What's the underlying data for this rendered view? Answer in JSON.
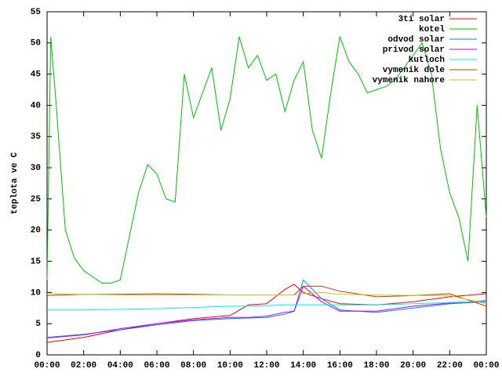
{
  "chart_data": {
    "type": "line",
    "y_label": "teplota ve C",
    "xlim": [
      0,
      24
    ],
    "xticks": [
      {
        "value": 0,
        "label": "00:00"
      },
      {
        "value": 2,
        "label": "02:00"
      },
      {
        "value": 4,
        "label": "04:00"
      },
      {
        "value": 6,
        "label": "06:00"
      },
      {
        "value": 8,
        "label": "08:00"
      },
      {
        "value": 10,
        "label": "10:00"
      },
      {
        "value": 12,
        "label": "12:00"
      },
      {
        "value": 14,
        "label": "14:00"
      },
      {
        "value": 16,
        "label": "16:00"
      },
      {
        "value": 18,
        "label": "18:00"
      },
      {
        "value": 20,
        "label": "20:00"
      },
      {
        "value": 22,
        "label": "22:00"
      },
      {
        "value": 24,
        "label": "00:00"
      }
    ],
    "ylim": [
      0,
      55
    ],
    "yticks": [
      0,
      5,
      10,
      15,
      20,
      25,
      30,
      35,
      40,
      45,
      50,
      55
    ],
    "legend": "top-right",
    "series": [
      {
        "name": "3ti solar",
        "color": "#ff0000",
        "x": [
          0,
          2,
          4,
          6,
          8,
          10,
          11,
          12,
          13,
          13.5,
          14,
          15,
          16,
          18,
          20,
          22,
          24
        ],
        "values": [
          2,
          2.8,
          4,
          5,
          5.8,
          6.3,
          8,
          8.2,
          10.5,
          11.3,
          10,
          9,
          8.2,
          8,
          8.5,
          9.3,
          9.8
        ]
      },
      {
        "name": "kotel",
        "color": "#00c000",
        "x": [
          0,
          0.2,
          0.5,
          1,
          1.5,
          2,
          2.5,
          3,
          3.5,
          4,
          4.5,
          5,
          5.5,
          6,
          6.5,
          7,
          7.5,
          8,
          8.5,
          9,
          9.5,
          10,
          10.5,
          11,
          11.5,
          12,
          12.5,
          13,
          13.5,
          14,
          14.5,
          15,
          15.5,
          16,
          16.5,
          17,
          17.5,
          18,
          18.5,
          19,
          19.5,
          20,
          20.5,
          21,
          21.5,
          22,
          22.5,
          23,
          23.5,
          24
        ],
        "values": [
          12,
          51,
          40,
          20,
          15.5,
          13.5,
          12.5,
          11.5,
          11.5,
          12,
          19,
          26,
          30.5,
          29,
          25,
          24.5,
          45,
          38,
          42,
          46,
          36,
          41,
          51,
          46,
          48,
          44,
          45,
          39,
          44,
          47,
          36,
          31.5,
          42,
          51,
          47,
          45,
          42,
          42.5,
          43,
          44,
          46,
          48,
          50,
          45,
          33,
          26,
          22,
          15,
          40,
          22
        ]
      },
      {
        "name": "odvod solar",
        "color": "#0080ff",
        "x": [
          0,
          2,
          4,
          6,
          8,
          10,
          11,
          12,
          13,
          13.5,
          14,
          15,
          16,
          18,
          20,
          22,
          24
        ],
        "values": [
          2.8,
          3.3,
          4,
          4.8,
          5.5,
          5.8,
          5.9,
          6,
          6.5,
          7,
          12,
          9,
          7.2,
          6.8,
          7.5,
          8.2,
          8.5
        ]
      },
      {
        "name": "privod solar",
        "color": "#c000ff",
        "x": [
          0,
          2,
          4,
          6,
          8,
          10,
          11,
          12,
          13,
          13.5,
          14,
          15,
          16,
          18,
          20,
          22,
          24
        ],
        "values": [
          2.7,
          3.2,
          4.2,
          5,
          5.6,
          6,
          6,
          6.2,
          6.8,
          7,
          11,
          8.5,
          7,
          7,
          7.8,
          8.3,
          8.7
        ]
      },
      {
        "name": "kutloch",
        "color": "#00eeee",
        "x": [
          0,
          2,
          4,
          6,
          8,
          10,
          11,
          12,
          13,
          13.5,
          14,
          15,
          16,
          18,
          20,
          22,
          24
        ],
        "values": [
          7.2,
          7.2,
          7.3,
          7.4,
          7.6,
          7.8,
          7.8,
          7.9,
          8,
          8,
          8,
          8,
          8,
          8,
          8.2,
          8.4,
          8.6
        ]
      },
      {
        "name": "vymenik dole",
        "color": "#c04000",
        "x": [
          0,
          2,
          4,
          6,
          8,
          10,
          11,
          12,
          13,
          13.5,
          14,
          15,
          16,
          18,
          20,
          22,
          24
        ],
        "values": [
          9.5,
          9.7,
          9.7,
          9.8,
          9.7,
          9.6,
          9.6,
          9.6,
          9.6,
          9.6,
          11,
          11,
          10.2,
          9.3,
          9.5,
          9.8,
          7.8
        ]
      },
      {
        "name": "vymenik nahore",
        "color": "#c8c800",
        "x": [
          0,
          2,
          4,
          6,
          8,
          10,
          11,
          12,
          13,
          13.5,
          14,
          15,
          16,
          18,
          20,
          22,
          24
        ],
        "values": [
          9.8,
          9.7,
          9.6,
          9.6,
          9.6,
          9.6,
          9.6,
          9.6,
          9.6,
          9.6,
          9.8,
          10,
          9.7,
          9.6,
          9.5,
          9.5,
          8.2
        ]
      }
    ]
  }
}
